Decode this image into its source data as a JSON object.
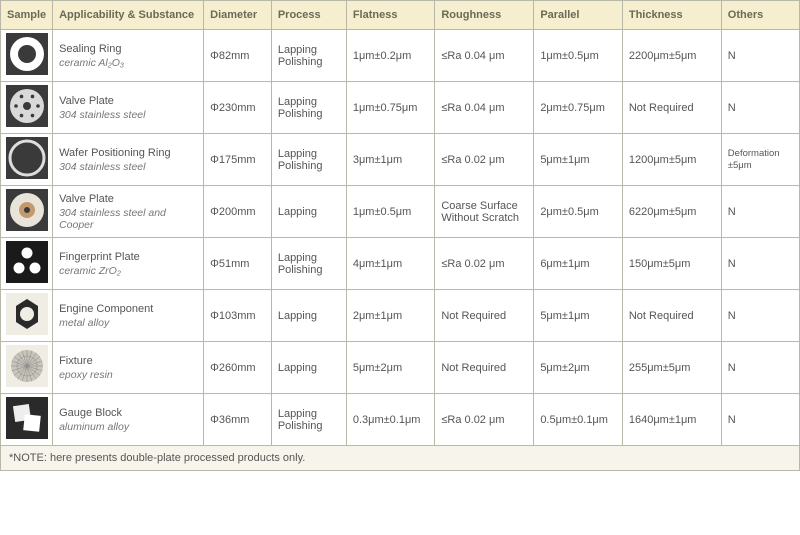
{
  "headers": {
    "sample": "Sample",
    "applicability": "Applicability & Substance",
    "diameter": "Diameter",
    "process": "Process",
    "flatness": "Flatness",
    "roughness": "Roughness",
    "parallel": "Parallel",
    "thickness": "Thickness",
    "others": "Others"
  },
  "rows": [
    {
      "app_name": "Sealing Ring",
      "app_sub": "ceramic Al₂O₃",
      "diameter": "Φ82mm",
      "process": "Lapping Polishing",
      "flatness": "1μm±0.2μm",
      "roughness": "≤Ra 0.04 μm",
      "parallel": "1μm±0.5μm",
      "thickness": "2200μm±5μm",
      "others": "N",
      "thumb": "ring-white"
    },
    {
      "app_name": "Valve Plate",
      "app_sub": "304 stainless steel",
      "diameter": "Φ230mm",
      "process": "Lapping Polishing",
      "flatness": "1μm±0.75μm",
      "roughness": "≤Ra 0.04 μm",
      "parallel": "2μm±0.75μm",
      "thickness": "Not Required",
      "others": "N",
      "thumb": "disc-holes"
    },
    {
      "app_name": "Wafer Positioning Ring",
      "app_sub": "304 stainless steel",
      "diameter": "Φ175mm",
      "process": "Lapping Polishing",
      "flatness": "3μm±1μm",
      "roughness": "≤Ra 0.02 μm",
      "parallel": "5μm±1μm",
      "thickness": "1200μm±5μm",
      "others": "Deformation ±5μm",
      "others_small": true,
      "thumb": "thin-ring"
    },
    {
      "app_name": "Valve Plate",
      "app_sub": "304 stainless steel and Cooper",
      "diameter": "Φ200mm",
      "process": "Lapping",
      "flatness": "1μm±0.5μm",
      "roughness": "Coarse Surface Without Scratch",
      "parallel": "2μm±0.5μm",
      "thickness": "6220μm±5μm",
      "others": "N",
      "thumb": "disc-cooper"
    },
    {
      "app_name": "Fingerprint Plate",
      "app_sub": "ceramic ZrO₂",
      "diameter": "Φ51mm",
      "process": "Lapping Polishing",
      "flatness": "4μm±1μm",
      "roughness": "≤Ra 0.02 μm",
      "parallel": "6μm±1μm",
      "thickness": "150μm±5μm",
      "others": "N",
      "thumb": "three-dots"
    },
    {
      "app_name": "Engine Component",
      "app_sub": "metal alloy",
      "diameter": "Φ103mm",
      "process": "Lapping",
      "flatness": "2μm±1μm",
      "roughness": "Not Required",
      "parallel": "5μm±1μm",
      "thickness": "Not Required",
      "others": "N",
      "thumb": "gear-shape"
    },
    {
      "app_name": "Fixture",
      "app_sub": "epoxy resin",
      "diameter": "Φ260mm",
      "process": "Lapping",
      "flatness": "5μm±2μm",
      "roughness": "Not Required",
      "parallel": "5μm±2μm",
      "thickness": "255μm±5μm",
      "others": "N",
      "thumb": "mesh-disc"
    },
    {
      "app_name": "Gauge Block",
      "app_sub": "aluminum alloy",
      "diameter": "Φ36mm",
      "process": "Lapping Polishing",
      "flatness": "0.3μm±0.1μm",
      "roughness": "≤Ra 0.02 μm",
      "parallel": "0.5μm±0.1μm",
      "thickness": "1640μm±1μm",
      "others": "N",
      "thumb": "two-squares"
    }
  ],
  "note": "*NOTE: here presents double-plate processed products only.",
  "colors": {
    "header_bg": "#f5efd0",
    "border": "#b8b8a8",
    "thumb_bg": "#3a3a3a",
    "note_bg": "#f7f5eb",
    "text": "#555555"
  }
}
